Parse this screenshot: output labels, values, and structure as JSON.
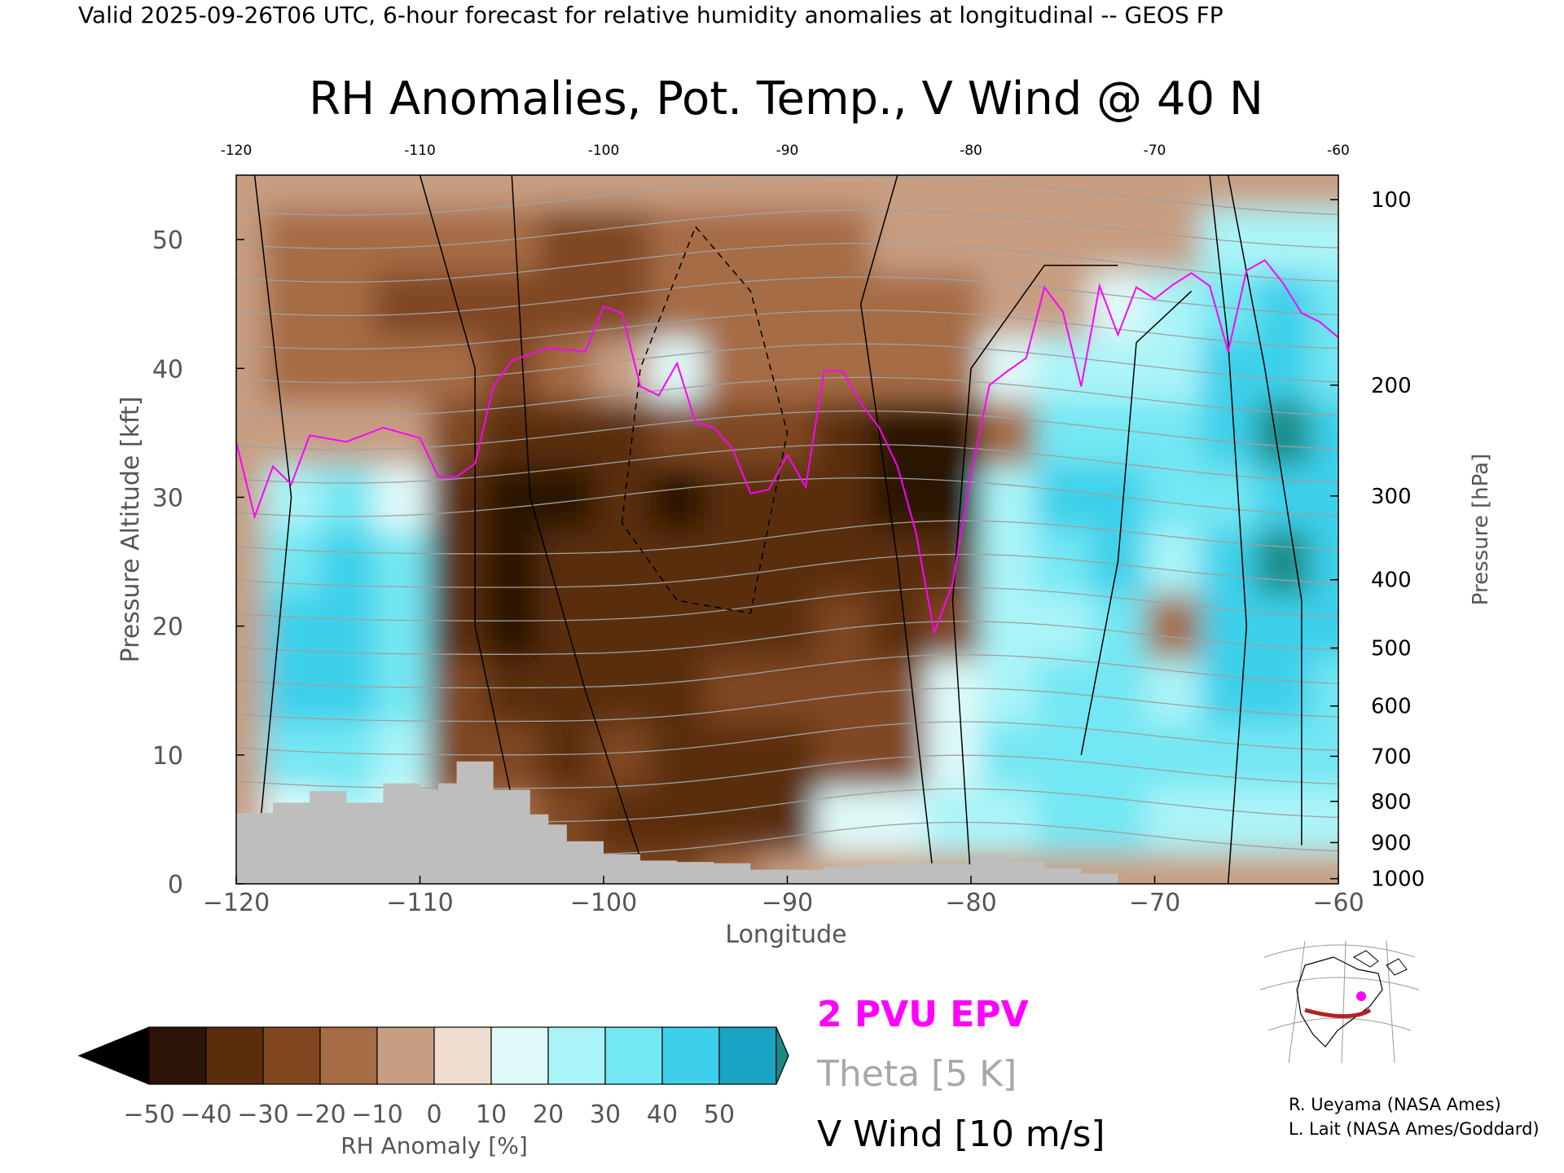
{
  "header": {
    "validity_line": "Valid 2025-09-26T06 UTC, 6-hour forecast for relative humidity anomalies at longitudinal -- GEOS FP",
    "title": "RH Anomalies, Pot. Temp., V Wind @ 40 N"
  },
  "colors": {
    "pv_line": "#ff00ff",
    "theta_lines": "#a0a0a0",
    "wind_contours": "#000000",
    "terrain": "#bebebe"
  },
  "chart_data": {
    "type": "heatmap",
    "title": "RH Anomalies, Pot. Temp., V Wind @ 40 N",
    "xlabel": "Longitude",
    "ylabel_left": "Pressure Altitude [kft]",
    "ylabel_right": "Pressure [hPa]",
    "xlim": [
      -120,
      -60
    ],
    "ylim": [
      0,
      55
    ],
    "x_ticks": [
      -120,
      -110,
      -100,
      -90,
      -80,
      -70,
      -60
    ],
    "x_tick_labels": [
      "−120",
      "−110",
      "−100",
      "−90",
      "−80",
      "−70",
      "−60"
    ],
    "x_top_tick_labels": [
      "-120",
      "-110",
      "-100",
      "-90",
      "-80",
      "-70",
      "-60"
    ],
    "y_ticks": [
      0,
      10,
      20,
      30,
      40,
      50
    ],
    "pressure_ticks": [
      {
        "label": "100",
        "kft": 53.1
      },
      {
        "label": "200",
        "kft": 38.7
      },
      {
        "label": "300",
        "kft": 30.1
      },
      {
        "label": "400",
        "kft": 23.6
      },
      {
        "label": "500",
        "kft": 18.3
      },
      {
        "label": "600",
        "kft": 13.8
      },
      {
        "label": "700",
        "kft": 9.9
      },
      {
        "label": "800",
        "kft": 6.4
      },
      {
        "label": "900",
        "kft": 3.2
      },
      {
        "label": "1000",
        "kft": 0.4
      }
    ],
    "colorbar": {
      "label": "RH Anomaly [%]",
      "ticks": [
        -50,
        -40,
        -30,
        -20,
        -10,
        0,
        10,
        20,
        30,
        40,
        50
      ],
      "tick_labels": [
        "−50",
        "−40",
        "−30",
        "−20",
        "−10",
        "0",
        "10",
        "20",
        "30",
        "40",
        "50"
      ],
      "colors": [
        "#2b1406",
        "#5a2d0d",
        "#7f4620",
        "#a66c45",
        "#c79e82",
        "#efddd0",
        "#dff9f9",
        "#aaf4f8",
        "#73e7f3",
        "#3ed0ea",
        "#1aa4c4"
      ],
      "under_color": "#000000",
      "over_color": "#1b8a86"
    },
    "rh_anomaly_grid": {
      "lon": [
        -120,
        -117,
        -114,
        -111,
        -108,
        -105,
        -102,
        -99,
        -96,
        -93,
        -90,
        -87,
        -84,
        -81,
        -78,
        -75,
        -72,
        -69,
        -66,
        -63,
        -60
      ],
      "kft": [
        0,
        5,
        10,
        15,
        20,
        25,
        30,
        35,
        40,
        45,
        50,
        55
      ],
      "values": [
        [
          -10,
          -10,
          -10,
          -10,
          -10,
          -10,
          -10,
          -10,
          -10,
          -10,
          -10,
          -10
        ],
        [
          -20,
          15,
          30,
          40,
          40,
          35,
          25,
          -10,
          -15,
          -15,
          -15,
          -10
        ],
        [
          -20,
          20,
          30,
          45,
          45,
          40,
          30,
          -10,
          -20,
          -20,
          -15,
          -10
        ],
        [
          -20,
          10,
          20,
          35,
          35,
          30,
          15,
          -10,
          -20,
          -25,
          -20,
          -10
        ],
        [
          -30,
          -20,
          -30,
          -30,
          -35,
          -40,
          -40,
          -25,
          -20,
          -25,
          -20,
          -10
        ],
        [
          -30,
          -20,
          -30,
          -40,
          -45,
          -45,
          -45,
          -40,
          -25,
          -25,
          -20,
          -10
        ],
        [
          -30,
          -30,
          -40,
          -40,
          -40,
          -40,
          -45,
          -40,
          -20,
          -30,
          -25,
          -10
        ],
        [
          -30,
          -40,
          -30,
          -40,
          -40,
          -40,
          -35,
          -35,
          -10,
          -30,
          -25,
          -5
        ],
        [
          -30,
          -40,
          -40,
          -35,
          -35,
          -40,
          -45,
          -30,
          10,
          -20,
          -20,
          -5
        ],
        [
          -20,
          -40,
          -40,
          -30,
          -40,
          -40,
          -40,
          -30,
          -20,
          -20,
          -15,
          -5
        ],
        [
          -10,
          -40,
          -40,
          -30,
          -35,
          -35,
          -40,
          -30,
          -15,
          -20,
          -15,
          -5
        ],
        [
          -10,
          15,
          -30,
          -30,
          -30,
          -35,
          -40,
          -35,
          -20,
          -20,
          -15,
          -5
        ],
        [
          -10,
          10,
          -30,
          -30,
          -35,
          -40,
          -45,
          -45,
          -20,
          -15,
          -10,
          -5
        ],
        [
          -10,
          20,
          15,
          10,
          -30,
          -40,
          -45,
          -45,
          -20,
          -15,
          -10,
          -5
        ],
        [
          -10,
          25,
          30,
          20,
          25,
          20,
          25,
          -20,
          15,
          -10,
          -10,
          -5
        ],
        [
          -10,
          30,
          35,
          30,
          25,
          30,
          40,
          30,
          20,
          -10,
          -10,
          -5
        ],
        [
          -10,
          30,
          30,
          35,
          30,
          45,
          45,
          30,
          20,
          15,
          -10,
          -5
        ],
        [
          -10,
          25,
          30,
          20,
          -20,
          25,
          30,
          30,
          25,
          20,
          -10,
          -5
        ],
        [
          -10,
          25,
          35,
          40,
          40,
          40,
          35,
          45,
          40,
          35,
          20,
          -5
        ],
        [
          -10,
          20,
          35,
          40,
          45,
          50,
          45,
          50,
          45,
          40,
          25,
          -5
        ],
        [
          -10,
          20,
          30,
          35,
          40,
          45,
          40,
          40,
          35,
          30,
          20,
          -5
        ]
      ]
    },
    "terrain_kft": {
      "lon": [
        -120,
        -118,
        -116,
        -114,
        -112,
        -110,
        -109,
        -108,
        -106,
        -104,
        -103,
        -102,
        -100,
        -98,
        -96,
        -94,
        -92,
        -90,
        -88,
        -86,
        -84,
        -82,
        -80,
        -78,
        -76,
        -74,
        -72
      ],
      "kft": [
        5.5,
        6.3,
        7.2,
        6.3,
        7.8,
        7.3,
        7.8,
        9.5,
        7.3,
        5.4,
        4.6,
        3.3,
        2.3,
        1.8,
        1.7,
        1.6,
        1.1,
        1.1,
        1.3,
        1.5,
        1.6,
        1.5,
        2.3,
        1.7,
        1.2,
        0.8,
        0.0
      ]
    },
    "pv_2pvu_line": {
      "lon": [
        -120,
        -119,
        -118,
        -117,
        -116,
        -114,
        -112,
        -110,
        -109,
        -108,
        -107,
        -106,
        -105,
        -103,
        -101,
        -100,
        -99,
        -98,
        -97,
        -96,
        -95,
        -94,
        -93,
        -92,
        -91,
        -90,
        -89,
        -88,
        -87,
        -86,
        -85,
        -84,
        -83,
        -82,
        -81,
        -80,
        -79,
        -78,
        -77,
        -76,
        -75,
        -74,
        -73,
        -72,
        -71,
        -70,
        -69,
        -68,
        -67,
        -66,
        -65,
        -64,
        -63,
        -62,
        -61,
        -60
      ],
      "kft": [
        34.3,
        28.5,
        32.4,
        31.0,
        34.8,
        34.3,
        35.4,
        34.6,
        31.6,
        31.6,
        32.6,
        38.6,
        40.6,
        41.6,
        41.3,
        44.8,
        44.3,
        38.6,
        37.9,
        40.4,
        35.8,
        35.4,
        33.8,
        30.3,
        30.6,
        33.3,
        30.8,
        39.8,
        39.8,
        37.3,
        35.4,
        32.4,
        27.3,
        19.5,
        23.3,
        31.8,
        38.7,
        39.8,
        40.8,
        46.3,
        44.4,
        38.6,
        46.4,
        42.6,
        46.3,
        45.4,
        46.5,
        47.4,
        46.4,
        41.3,
        47.6,
        48.4,
        46.6,
        44.3,
        43.6,
        42.4
      ]
    },
    "legend": [
      {
        "label": "2 PVU EPV"
      },
      {
        "label": "Theta [5 K]"
      },
      {
        "label": "V Wind [10 m/s]"
      }
    ]
  },
  "credits": [
    "R. Ueyama (NASA Ames)",
    "L. Lait (NASA Ames/Goddard)"
  ]
}
